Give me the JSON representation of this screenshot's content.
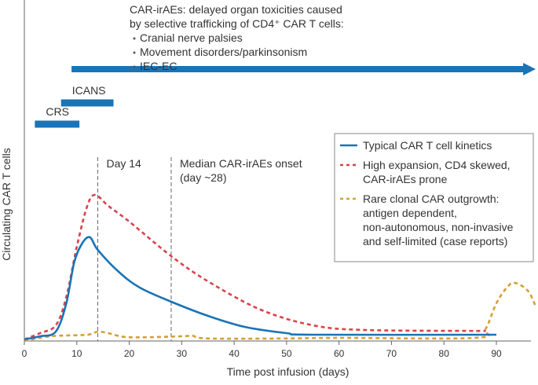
{
  "chart_data": {
    "type": "line",
    "xlabel": "Time post infusion (days)",
    "ylabel": "Circulating CAR T cells",
    "xlim": [
      0,
      97.5
    ],
    "ylim": [
      0,
      108
    ],
    "xticks": [
      0,
      10,
      20,
      30,
      40,
      50,
      60,
      70,
      80,
      90
    ],
    "grid": false,
    "legend_position": "right",
    "series": [
      {
        "name": "Typical CAR T cell kinetics",
        "style": "solid",
        "color": "#1a74b6",
        "points": [
          [
            0,
            0.5
          ],
          [
            3,
            1.5
          ],
          [
            6,
            3
          ],
          [
            8,
            12
          ],
          [
            9.5,
            25
          ],
          [
            11,
            31
          ],
          [
            12.5,
            33
          ],
          [
            14,
            29
          ],
          [
            18,
            22
          ],
          [
            22,
            17
          ],
          [
            28,
            12.5
          ],
          [
            35,
            8
          ],
          [
            42,
            4.5
          ],
          [
            50,
            2.5
          ],
          [
            55,
            2
          ],
          [
            90,
            2
          ]
        ]
      },
      {
        "name": "High expansion, CD4 skewed, CAR-irAEs prone",
        "style": "dashed",
        "color": "#d9434b",
        "points": [
          [
            0,
            0.5
          ],
          [
            3,
            2.5
          ],
          [
            6,
            5
          ],
          [
            8,
            14
          ],
          [
            10,
            30
          ],
          [
            12,
            43
          ],
          [
            13.5,
            46.5
          ],
          [
            16,
            43
          ],
          [
            20,
            38
          ],
          [
            28,
            27
          ],
          [
            35,
            19
          ],
          [
            45,
            10
          ],
          [
            55,
            5
          ],
          [
            65,
            3.5
          ],
          [
            88,
            3.2
          ]
        ]
      },
      {
        "name": "Rare clonal CAR outgrowth: antigen dependent, non-autonomous, non-invasive and self-limited (case reports)",
        "style": "dashed",
        "color": "#d4a037",
        "points": [
          [
            0,
            0
          ],
          [
            5,
            1.5
          ],
          [
            12,
            2
          ],
          [
            14,
            3
          ],
          [
            16,
            2.5
          ],
          [
            20,
            1.2
          ],
          [
            30,
            1.5
          ],
          [
            32,
            1.7
          ],
          [
            35,
            0.8
          ],
          [
            50,
            0.8
          ],
          [
            60,
            1
          ],
          [
            86,
            1
          ],
          [
            88,
            4
          ],
          [
            90,
            12
          ],
          [
            92,
            17
          ],
          [
            93.5,
            18.5
          ],
          [
            96,
            16
          ],
          [
            97.5,
            11
          ]
        ]
      }
    ],
    "legend_lines": [
      [
        "Typical CAR T cell kinetics"
      ],
      [
        "High expansion, CD4 skewed,",
        "CAR-irAEs prone"
      ],
      [
        "Rare clonal CAR outgrowth:",
        "antigen dependent,",
        "non-autonomous, non-invasive",
        "and self-limited (case reports)"
      ]
    ],
    "markers": [
      {
        "day": 14,
        "label": [
          "Day 14"
        ]
      },
      {
        "day": 28,
        "label": [
          "Median CAR-irAEs onset",
          "(day ~28)"
        ]
      }
    ],
    "phases": [
      {
        "label": "CRS",
        "start": 2,
        "end": 10.5
      },
      {
        "label": "ICANS",
        "start": 7,
        "end": 17
      },
      {
        "label": "CAR-irAEs",
        "start": 9,
        "end": 97.5,
        "arrow": true
      }
    ],
    "annotation": {
      "lines": [
        "CAR-irAEs: delayed organ toxicities caused",
        "by selective trafficking of CD4⁺ CAR T cells:"
      ],
      "bullets": [
        "Cranial nerve palsies",
        "Movement disorders/parkinsonism",
        "IEC-EC"
      ]
    },
    "phase_color": "#1a74b6"
  }
}
